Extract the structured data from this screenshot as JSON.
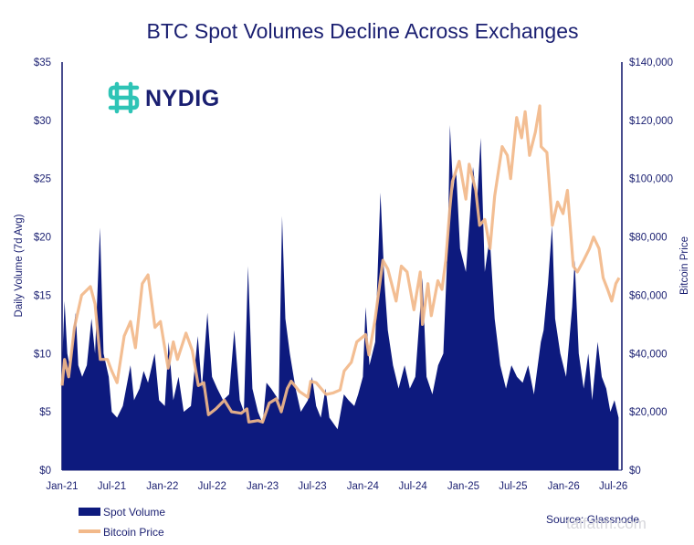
{
  "chart_data": {
    "type": "area",
    "title": "BTC Spot Volumes Decline Across Exchanges",
    "ylabel_left": "Daily Volume (7d Avg)",
    "ylabel_right": "Bitcoin Price",
    "ylim_left": [
      0,
      35
    ],
    "ylim_right": [
      0,
      140000
    ],
    "xlim": [
      "2021-01-01",
      "2026-08-01"
    ],
    "y_ticks_left": [
      "$0",
      "$5",
      "$10",
      "$15",
      "$20",
      "$25",
      "$30",
      "$35"
    ],
    "y_ticks_right": [
      "$0",
      "$20,000",
      "$40,000",
      "$60,000",
      "$80,000",
      "$100,000",
      "$120,000",
      "$140,000"
    ],
    "x_ticks": [
      {
        "label": "Jan-21",
        "date": "2021-01-01"
      },
      {
        "label": "Jul-21",
        "date": "2021-07-01"
      },
      {
        "label": "Jan-22",
        "date": "2022-01-01"
      },
      {
        "label": "Jul-22",
        "date": "2022-07-01"
      },
      {
        "label": "Jan-23",
        "date": "2023-01-01"
      },
      {
        "label": "Jul-23",
        "date": "2023-07-01"
      },
      {
        "label": "Jan-24",
        "date": "2024-01-01"
      },
      {
        "label": "Jul-24",
        "date": "2024-07-01"
      },
      {
        "label": "Jan-25",
        "date": "2025-01-01"
      },
      {
        "label": "Jul-25",
        "date": "2025-07-01"
      },
      {
        "label": "Jan-26",
        "date": "2026-01-01"
      },
      {
        "label": "Jul-26",
        "date": "2026-07-01"
      }
    ],
    "grid": false,
    "legend_placement": "bottom-left",
    "series": [
      {
        "name": "Spot Volume",
        "type": "area",
        "axis": "left",
        "color": "#0d1a7e",
        "points": [
          [
            "2021-01-01",
            9
          ],
          [
            "2021-01-10",
            14.5
          ],
          [
            "2021-01-20",
            10
          ],
          [
            "2021-02-01",
            8.5
          ],
          [
            "2021-02-10",
            12
          ],
          [
            "2021-02-20",
            13.5
          ],
          [
            "2021-03-01",
            9
          ],
          [
            "2021-03-15",
            8
          ],
          [
            "2021-04-01",
            9
          ],
          [
            "2021-04-18",
            13
          ],
          [
            "2021-05-01",
            10
          ],
          [
            "2021-05-19",
            20.8
          ],
          [
            "2021-06-01",
            10
          ],
          [
            "2021-06-20",
            8
          ],
          [
            "2021-07-01",
            5
          ],
          [
            "2021-07-20",
            4.5
          ],
          [
            "2021-08-10",
            5.5
          ],
          [
            "2021-09-07",
            9
          ],
          [
            "2021-09-20",
            6
          ],
          [
            "2021-10-10",
            7
          ],
          [
            "2021-10-25",
            8.5
          ],
          [
            "2021-11-10",
            7.5
          ],
          [
            "2021-12-04",
            10
          ],
          [
            "2021-12-20",
            6
          ],
          [
            "2022-01-10",
            5.5
          ],
          [
            "2022-01-24",
            11
          ],
          [
            "2022-02-10",
            6
          ],
          [
            "2022-03-01",
            8
          ],
          [
            "2022-03-20",
            5
          ],
          [
            "2022-04-15",
            5.5
          ],
          [
            "2022-05-10",
            11.5
          ],
          [
            "2022-05-25",
            7
          ],
          [
            "2022-06-14",
            13.5
          ],
          [
            "2022-07-01",
            8
          ],
          [
            "2022-07-20",
            7
          ],
          [
            "2022-08-10",
            6
          ],
          [
            "2022-09-01",
            6.5
          ],
          [
            "2022-09-20",
            12
          ],
          [
            "2022-10-10",
            6
          ],
          [
            "2022-10-25",
            5
          ],
          [
            "2022-11-09",
            17.5
          ],
          [
            "2022-11-25",
            7
          ],
          [
            "2022-12-15",
            5
          ],
          [
            "2023-01-01",
            4
          ],
          [
            "2023-01-15",
            7.5
          ],
          [
            "2023-02-01",
            7
          ],
          [
            "2023-03-01",
            6
          ],
          [
            "2023-03-13",
            21.8
          ],
          [
            "2023-03-25",
            13
          ],
          [
            "2023-04-10",
            10
          ],
          [
            "2023-05-01",
            7
          ],
          [
            "2023-05-20",
            5
          ],
          [
            "2023-06-15",
            6
          ],
          [
            "2023-06-30",
            8
          ],
          [
            "2023-07-15",
            5.5
          ],
          [
            "2023-08-01",
            4.5
          ],
          [
            "2023-08-18",
            7
          ],
          [
            "2023-09-01",
            4.5
          ],
          [
            "2023-10-01",
            3.5
          ],
          [
            "2023-10-24",
            6.5
          ],
          [
            "2023-11-10",
            6
          ],
          [
            "2023-12-01",
            5.5
          ],
          [
            "2023-12-15",
            6.5
          ],
          [
            "2024-01-01",
            8
          ],
          [
            "2024-01-11",
            14
          ],
          [
            "2024-01-25",
            9
          ],
          [
            "2024-02-15",
            11
          ],
          [
            "2024-03-05",
            23.8
          ],
          [
            "2024-03-20",
            16
          ],
          [
            "2024-04-01",
            12
          ],
          [
            "2024-04-20",
            9
          ],
          [
            "2024-05-10",
            7
          ],
          [
            "2024-06-01",
            9
          ],
          [
            "2024-06-20",
            7
          ],
          [
            "2024-07-10",
            8
          ],
          [
            "2024-08-05",
            16.5
          ],
          [
            "2024-08-20",
            8
          ],
          [
            "2024-09-10",
            6.5
          ],
          [
            "2024-10-01",
            9
          ],
          [
            "2024-10-20",
            10
          ],
          [
            "2024-11-06",
            20
          ],
          [
            "2024-11-13",
            29.6
          ],
          [
            "2024-11-25",
            24
          ],
          [
            "2024-12-05",
            26
          ],
          [
            "2024-12-20",
            19
          ],
          [
            "2025-01-10",
            17
          ],
          [
            "2025-01-25",
            22
          ],
          [
            "2025-02-05",
            26
          ],
          [
            "2025-02-20",
            23
          ],
          [
            "2025-03-05",
            28.5
          ],
          [
            "2025-03-20",
            17
          ],
          [
            "2025-04-07",
            20
          ],
          [
            "2025-04-25",
            13
          ],
          [
            "2025-05-15",
            9
          ],
          [
            "2025-06-05",
            7
          ],
          [
            "2025-06-25",
            9
          ],
          [
            "2025-07-15",
            8
          ],
          [
            "2025-08-05",
            7.5
          ],
          [
            "2025-08-25",
            9
          ],
          [
            "2025-09-15",
            6.5
          ],
          [
            "2025-10-10",
            11
          ],
          [
            "2025-10-20",
            12
          ],
          [
            "2025-11-05",
            16
          ],
          [
            "2025-11-20",
            21
          ],
          [
            "2025-12-01",
            13
          ],
          [
            "2025-12-20",
            10
          ],
          [
            "2026-01-10",
            8
          ],
          [
            "2026-02-01",
            14
          ],
          [
            "2026-02-10",
            18
          ],
          [
            "2026-02-25",
            10
          ],
          [
            "2026-03-15",
            7
          ],
          [
            "2026-04-01",
            10
          ],
          [
            "2026-04-15",
            6
          ],
          [
            "2026-05-05",
            11
          ],
          [
            "2026-05-20",
            8
          ],
          [
            "2026-06-05",
            7
          ],
          [
            "2026-06-20",
            5
          ],
          [
            "2026-07-05",
            6
          ],
          [
            "2026-07-20",
            4.5
          ]
        ]
      },
      {
        "name": "Bitcoin Price",
        "type": "line",
        "axis": "right",
        "color": "#f2b98a",
        "points": [
          [
            "2021-01-01",
            29000
          ],
          [
            "2021-01-10",
            38000
          ],
          [
            "2021-01-25",
            32000
          ],
          [
            "2021-02-15",
            49000
          ],
          [
            "2021-03-13",
            60000
          ],
          [
            "2021-04-14",
            63000
          ],
          [
            "2021-05-01",
            57000
          ],
          [
            "2021-05-20",
            38000
          ],
          [
            "2021-06-15",
            38000
          ],
          [
            "2021-07-01",
            34000
          ],
          [
            "2021-07-20",
            30000
          ],
          [
            "2021-08-15",
            46000
          ],
          [
            "2021-09-07",
            51000
          ],
          [
            "2021-09-25",
            42000
          ],
          [
            "2021-10-20",
            64000
          ],
          [
            "2021-11-10",
            67000
          ],
          [
            "2021-12-05",
            49000
          ],
          [
            "2021-12-25",
            51000
          ],
          [
            "2022-01-22",
            35000
          ],
          [
            "2022-02-10",
            44000
          ],
          [
            "2022-02-25",
            38000
          ],
          [
            "2022-03-28",
            47000
          ],
          [
            "2022-04-20",
            41000
          ],
          [
            "2022-05-12",
            29000
          ],
          [
            "2022-06-01",
            30000
          ],
          [
            "2022-06-18",
            19000
          ],
          [
            "2022-07-15",
            21000
          ],
          [
            "2022-08-15",
            24000
          ],
          [
            "2022-09-10",
            20000
          ],
          [
            "2022-10-15",
            19500
          ],
          [
            "2022-11-05",
            21000
          ],
          [
            "2022-11-12",
            16500
          ],
          [
            "2022-12-15",
            17000
          ],
          [
            "2023-01-01",
            16500
          ],
          [
            "2023-01-25",
            23000
          ],
          [
            "2023-02-20",
            24500
          ],
          [
            "2023-03-10",
            20000
          ],
          [
            "2023-04-01",
            28000
          ],
          [
            "2023-04-15",
            30500
          ],
          [
            "2023-05-15",
            27000
          ],
          [
            "2023-06-15",
            25000
          ],
          [
            "2023-06-25",
            30500
          ],
          [
            "2023-07-15",
            30000
          ],
          [
            "2023-08-20",
            26000
          ],
          [
            "2023-09-15",
            26500
          ],
          [
            "2023-10-10",
            27500
          ],
          [
            "2023-10-25",
            34000
          ],
          [
            "2023-11-20",
            37000
          ],
          [
            "2023-12-10",
            44000
          ],
          [
            "2024-01-11",
            46500
          ],
          [
            "2024-01-23",
            39500
          ],
          [
            "2024-02-15",
            52000
          ],
          [
            "2024-03-14",
            72000
          ],
          [
            "2024-04-01",
            69000
          ],
          [
            "2024-05-01",
            58000
          ],
          [
            "2024-05-20",
            70000
          ],
          [
            "2024-06-10",
            68000
          ],
          [
            "2024-07-05",
            55000
          ],
          [
            "2024-07-28",
            68000
          ],
          [
            "2024-08-05",
            50000
          ],
          [
            "2024-08-25",
            64000
          ],
          [
            "2024-09-06",
            53000
          ],
          [
            "2024-09-30",
            65000
          ],
          [
            "2024-10-15",
            62000
          ],
          [
            "2024-10-29",
            72000
          ],
          [
            "2024-11-13",
            90000
          ],
          [
            "2024-11-22",
            99000
          ],
          [
            "2024-12-17",
            106000
          ],
          [
            "2025-01-10",
            93000
          ],
          [
            "2025-01-22",
            105000
          ],
          [
            "2025-02-15",
            96000
          ],
          [
            "2025-03-01",
            84000
          ],
          [
            "2025-03-20",
            86000
          ],
          [
            "2025-04-08",
            76000
          ],
          [
            "2025-04-25",
            94000
          ],
          [
            "2025-05-22",
            111000
          ],
          [
            "2025-06-10",
            108000
          ],
          [
            "2025-06-22",
            100000
          ],
          [
            "2025-07-14",
            121000
          ],
          [
            "2025-08-01",
            114000
          ],
          [
            "2025-08-14",
            123000
          ],
          [
            "2025-08-30",
            108000
          ],
          [
            "2025-09-20",
            116000
          ],
          [
            "2025-10-06",
            125000
          ],
          [
            "2025-10-11",
            111000
          ],
          [
            "2025-11-01",
            109000
          ],
          [
            "2025-11-21",
            84000
          ],
          [
            "2025-12-10",
            92000
          ],
          [
            "2025-12-30",
            88000
          ],
          [
            "2026-01-15",
            96000
          ],
          [
            "2026-02-05",
            70000
          ],
          [
            "2026-02-20",
            68000
          ],
          [
            "2026-03-15",
            72000
          ],
          [
            "2026-04-05",
            76000
          ],
          [
            "2026-04-20",
            80000
          ],
          [
            "2026-05-10",
            76000
          ],
          [
            "2026-05-25",
            66000
          ],
          [
            "2026-06-10",
            62000
          ],
          [
            "2026-06-25",
            58000
          ],
          [
            "2026-07-10",
            64000
          ],
          [
            "2026-07-22",
            66000
          ]
        ]
      }
    ],
    "source": "Source: Glassnode"
  },
  "logo": {
    "text": "NYDIG",
    "color": "#1a1f71",
    "icon_color": "#2ec4b6"
  },
  "watermark": "taifatm.com"
}
